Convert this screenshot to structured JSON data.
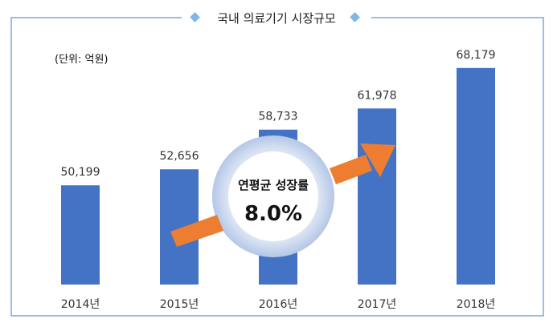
{
  "chart_data": {
    "type": "bar",
    "title": "국내 의료기기 시장규모",
    "unit_label": "(단위: 억원)",
    "categories": [
      "2014년",
      "2015년",
      "2016년",
      "2017년",
      "2018년"
    ],
    "values": [
      50199,
      52656,
      58733,
      61978,
      68179
    ],
    "value_labels": [
      "50,199",
      "52,656",
      "58,733",
      "61,978",
      "68,179"
    ],
    "ylim": [
      35000,
      70000
    ],
    "grid": false,
    "annotation": {
      "label": "연평균 성장률",
      "value": "8.0%"
    }
  },
  "colors": {
    "bar": "#4472C4",
    "frame": "#7FA7DA",
    "diamond": "#7FB8E6",
    "arrow": "#ED7D31",
    "ring_outer": "#B4C7E7",
    "ring_inner": "#DAE3F3"
  }
}
